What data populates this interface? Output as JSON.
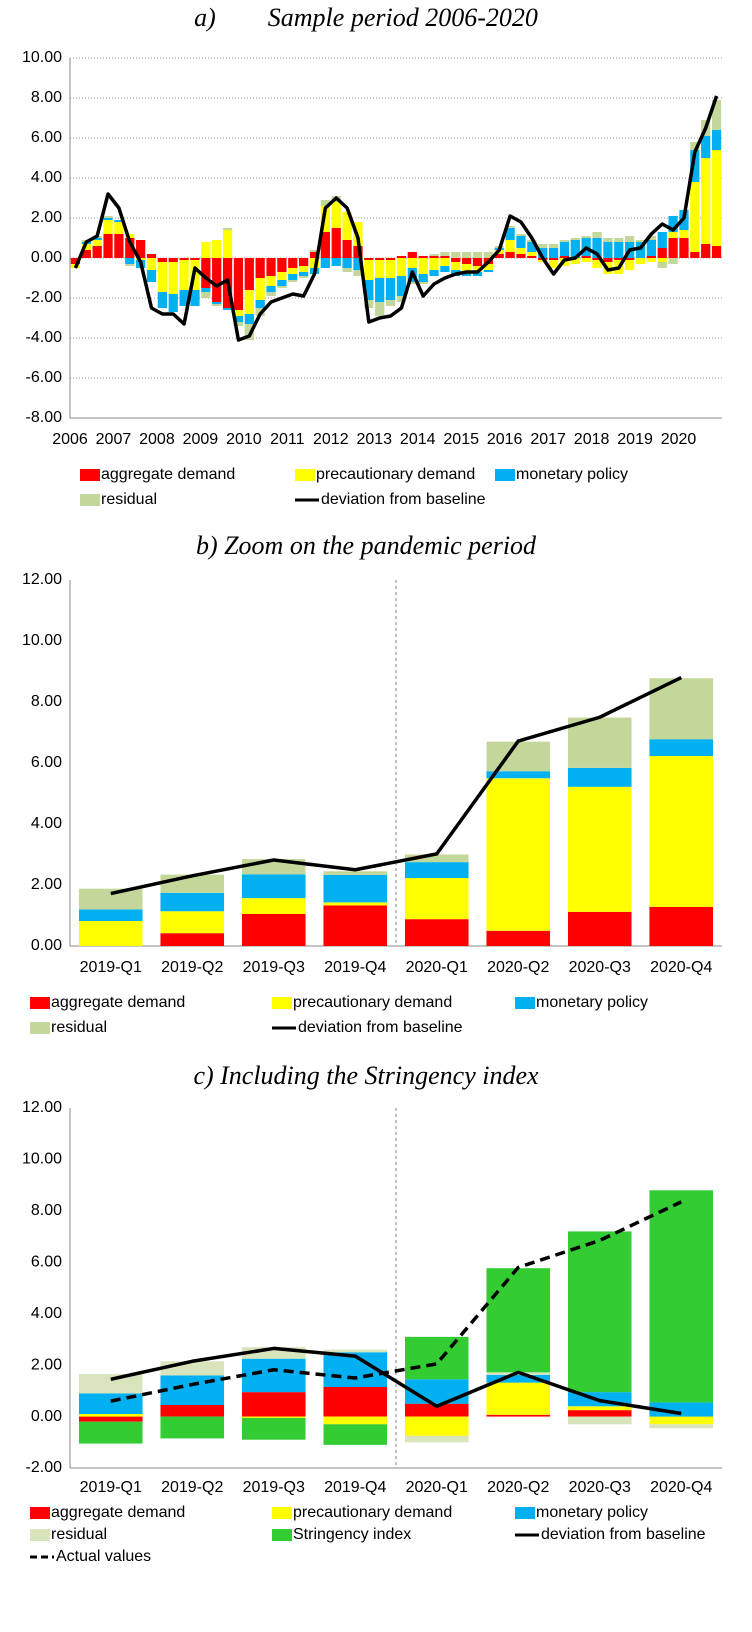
{
  "chart_data": [
    {
      "type": "bar",
      "stacked": true,
      "grid": true,
      "title": "a)        Sample period 2006-2020",
      "categories": [
        "2006",
        null,
        null,
        null,
        "2007",
        null,
        null,
        null,
        "2008",
        null,
        null,
        null,
        "2009",
        null,
        null,
        null,
        "2010",
        null,
        null,
        null,
        "2011",
        null,
        null,
        null,
        "2012",
        null,
        null,
        null,
        "2013",
        null,
        null,
        null,
        "2014",
        null,
        null,
        null,
        "2015",
        null,
        null,
        null,
        "2016",
        null,
        null,
        null,
        "2017",
        null,
        null,
        null,
        "2018",
        null,
        null,
        null,
        "2019",
        null,
        null,
        null,
        "2020",
        null,
        null,
        null
      ],
      "ylim": [
        -8,
        10
      ],
      "yticks": [
        {
          "value": -8,
          "label": "-8.00"
        },
        {
          "value": -6,
          "label": "-6.00"
        },
        {
          "value": -4,
          "label": "-4.00"
        },
        {
          "value": -2,
          "label": "-2.00"
        },
        {
          "value": 0,
          "label": "0.00"
        },
        {
          "value": 2,
          "label": "2.00"
        },
        {
          "value": 4,
          "label": "4.00"
        },
        {
          "value": 6,
          "label": "6.00"
        },
        {
          "value": 8,
          "label": "8.00"
        },
        {
          "value": 10,
          "label": "10.00"
        }
      ],
      "series": [
        {
          "name": "aggregate demand",
          "type": "bar",
          "color": "#ff0000",
          "values": [
            -0.3,
            0.4,
            0.6,
            1.2,
            1.2,
            1.0,
            0.9,
            0.2,
            -0.2,
            -0.2,
            -0.1,
            -0.1,
            -1.5,
            -2.2,
            -2.5,
            -2.6,
            -1.6,
            -1.0,
            -0.9,
            -0.7,
            -0.5,
            -0.4,
            0.3,
            1.3,
            1.5,
            0.9,
            0.6,
            -0.1,
            -0.1,
            -0.1,
            0.1,
            0.3,
            0.1,
            0.1,
            0.1,
            -0.2,
            -0.3,
            -0.4,
            -0.3,
            0.2,
            0.3,
            0.2,
            0.1,
            -0.1,
            -0.1,
            0.1,
            0.0,
            0.1,
            -0.1,
            -0.2,
            -0.1,
            -0.1,
            0.0,
            0.1,
            0.5,
            1.0,
            1.0,
            0.3,
            0.7,
            0.6
          ]
        },
        {
          "name": "precautionary demand",
          "type": "bar",
          "color": "#ffff00",
          "values": [
            -0.2,
            0.3,
            0.3,
            0.7,
            0.6,
            0.2,
            -0.1,
            -0.6,
            -1.5,
            -1.6,
            -1.5,
            -1.5,
            0.8,
            0.9,
            1.4,
            -0.3,
            -1.2,
            -1.1,
            -0.5,
            -0.4,
            -0.3,
            -0.3,
            -0.5,
            1.3,
            1.3,
            1.4,
            1.2,
            -1.0,
            -0.9,
            -0.9,
            -0.9,
            -0.5,
            -0.8,
            -0.6,
            -0.4,
            -0.4,
            -0.4,
            -0.3,
            -0.3,
            0.2,
            0.6,
            0.3,
            0.2,
            -0.1,
            -0.4,
            -0.4,
            -0.3,
            -0.2,
            -0.4,
            -0.6,
            -0.7,
            -0.5,
            -0.3,
            -0.2,
            -0.2,
            0.3,
            0.4,
            3.5,
            4.3,
            4.8
          ]
        },
        {
          "name": "monetary policy",
          "type": "bar",
          "color": "#00b0f0",
          "values": [
            0.0,
            0.1,
            0.1,
            0.1,
            0.1,
            -0.3,
            -0.4,
            -0.6,
            -0.8,
            -0.9,
            -0.8,
            -0.8,
            -0.2,
            -0.1,
            -0.1,
            -0.3,
            -0.5,
            -0.4,
            -0.3,
            -0.3,
            -0.3,
            -0.2,
            -0.3,
            -0.5,
            -0.4,
            -0.5,
            -0.6,
            -1.0,
            -1.2,
            -1.1,
            -1.0,
            -0.7,
            -0.4,
            -0.3,
            -0.3,
            -0.3,
            -0.2,
            -0.2,
            -0.1,
            0.1,
            0.6,
            0.6,
            0.5,
            0.5,
            0.5,
            0.7,
            0.9,
            0.9,
            1.0,
            0.8,
            0.8,
            0.8,
            0.8,
            0.8,
            0.8,
            0.8,
            1.0,
            1.6,
            1.1,
            1.0
          ]
        },
        {
          "name": "residual",
          "type": "bar",
          "color": "#c4d79b",
          "values": [
            0.0,
            0.1,
            0.1,
            0.1,
            0.0,
            -0.1,
            0.0,
            0.0,
            0.0,
            0.0,
            0.0,
            0.0,
            -0.3,
            -0.1,
            0.1,
            -0.2,
            -0.8,
            -0.4,
            -0.2,
            -0.1,
            -0.1,
            -0.1,
            0.1,
            0.3,
            0.3,
            -0.2,
            -0.3,
            -0.4,
            -0.7,
            -0.3,
            -0.3,
            -0.1,
            -0.1,
            0.1,
            0.2,
            0.3,
            0.3,
            0.3,
            0.3,
            0.1,
            0.1,
            0.1,
            0.1,
            0.2,
            0.2,
            0.1,
            0.1,
            0.1,
            0.3,
            0.2,
            0.2,
            0.3,
            0.1,
            0.2,
            -0.3,
            -0.3,
            0.0,
            0.4,
            0.8,
            1.5
          ]
        },
        {
          "name": "deviation from baseline",
          "type": "line",
          "color": "#000000",
          "values": [
            -0.5,
            0.8,
            1.1,
            3.2,
            2.5,
            0.8,
            -0.2,
            -2.5,
            -2.8,
            -2.8,
            -3.3,
            -0.5,
            -1.0,
            -1.4,
            -1.1,
            -4.1,
            -3.9,
            -2.8,
            -2.2,
            -2.0,
            -1.8,
            -1.9,
            -0.8,
            2.5,
            3.0,
            2.5,
            1.0,
            -3.2,
            -3.0,
            -2.9,
            -2.5,
            -0.7,
            -1.9,
            -1.3,
            -1.0,
            -0.8,
            -0.7,
            -0.7,
            -0.2,
            0.4,
            2.1,
            1.8,
            1.0,
            0.0,
            -0.8,
            -0.1,
            0.0,
            0.5,
            0.2,
            -0.6,
            -0.5,
            0.4,
            0.5,
            1.2,
            1.7,
            1.4,
            2.0,
            5.3,
            6.5,
            8.1
          ]
        }
      ]
    },
    {
      "type": "bar",
      "stacked": true,
      "grid": false,
      "title": "b) Zoom on the pandemic period",
      "categories": [
        "2019-Q1",
        "2019-Q2",
        "2019-Q3",
        "2019-Q4",
        "2020-Q1",
        "2020-Q2",
        "2020-Q3",
        "2020-Q4"
      ],
      "ylim": [
        0,
        12
      ],
      "yticks": [
        {
          "value": 0,
          "label": "0.00"
        },
        {
          "value": 2,
          "label": "2.00"
        },
        {
          "value": 4,
          "label": "4.00"
        },
        {
          "value": 6,
          "label": "6.00"
        },
        {
          "value": 8,
          "label": "8.00"
        },
        {
          "value": 10,
          "label": "10.00"
        },
        {
          "value": 12,
          "label": "12.00"
        }
      ],
      "series": [
        {
          "name": "aggregate demand",
          "type": "bar",
          "color": "#ff0000",
          "values": [
            0.0,
            0.42,
            1.05,
            1.33,
            0.88,
            0.5,
            1.12,
            1.28
          ]
        },
        {
          "name": "precautionary demand",
          "type": "bar",
          "color": "#ffff00",
          "values": [
            0.82,
            0.72,
            0.52,
            0.1,
            1.35,
            5.0,
            4.1,
            4.95
          ]
        },
        {
          "name": "monetary policy",
          "type": "bar",
          "color": "#00b0f0",
          "values": [
            0.38,
            0.6,
            0.78,
            0.9,
            0.52,
            0.23,
            0.62,
            0.55
          ]
        },
        {
          "name": "residual",
          "type": "bar",
          "color": "#c4d79b",
          "values": [
            0.68,
            0.6,
            0.5,
            0.12,
            0.25,
            0.97,
            1.65,
            2.0
          ]
        },
        {
          "name": "deviation from baseline",
          "type": "line",
          "color": "#000000",
          "values": [
            1.72,
            2.3,
            2.82,
            2.5,
            3.02,
            6.72,
            7.5,
            8.8
          ]
        }
      ]
    },
    {
      "type": "bar",
      "stacked": true,
      "grid": false,
      "title": "c) Including the Stringency index",
      "categories": [
        "2019-Q1",
        "2019-Q2",
        "2019-Q3",
        "2019-Q4",
        "2020-Q1",
        "2020-Q2",
        "2020-Q3",
        "2020-Q4"
      ],
      "ylim": [
        -2,
        12
      ],
      "yticks": [
        {
          "value": -2,
          "label": "-2.00"
        },
        {
          "value": 0,
          "label": "0.00"
        },
        {
          "value": 2,
          "label": "2.00"
        },
        {
          "value": 4,
          "label": "4.00"
        },
        {
          "value": 6,
          "label": "6.00"
        },
        {
          "value": 8,
          "label": "8.00"
        },
        {
          "value": 10,
          "label": "10.00"
        },
        {
          "value": 12,
          "label": "12.00"
        }
      ],
      "series": [
        {
          "name": "aggregate demand",
          "type": "bar",
          "color": "#ff0000",
          "values": [
            -0.2,
            0.45,
            0.95,
            1.15,
            0.5,
            0.07,
            0.25,
            0.0
          ]
        },
        {
          "name": "precautionary demand",
          "type": "bar",
          "color": "#ffff00",
          "values": [
            0.1,
            0.0,
            -0.05,
            -0.3,
            -0.75,
            1.25,
            0.15,
            -0.3
          ]
        },
        {
          "name": "monetary policy",
          "type": "bar",
          "color": "#00b0f0",
          "values": [
            0.8,
            1.15,
            1.3,
            1.35,
            0.95,
            0.3,
            0.55,
            0.55
          ]
        },
        {
          "name": "residual",
          "type": "bar",
          "color": "#d8e4bc",
          "values": [
            0.75,
            0.55,
            0.45,
            0.1,
            -0.25,
            0.1,
            -0.3,
            -0.15
          ]
        },
        {
          "name": "Stringency index",
          "type": "bar",
          "color": "#33cc33",
          "values": [
            -0.85,
            -0.85,
            -0.85,
            -0.8,
            1.65,
            4.05,
            6.25,
            8.25
          ]
        },
        {
          "name": "deviation from baseline",
          "type": "line",
          "color": "#000000",
          "values": [
            1.45,
            2.15,
            2.65,
            2.35,
            0.4,
            1.72,
            0.62,
            0.12
          ]
        },
        {
          "name": "Actual values",
          "type": "line",
          "dash": true,
          "color": "#000000",
          "values": [
            0.6,
            1.25,
            1.82,
            1.5,
            2.05,
            5.8,
            6.85,
            8.35
          ]
        }
      ]
    }
  ]
}
